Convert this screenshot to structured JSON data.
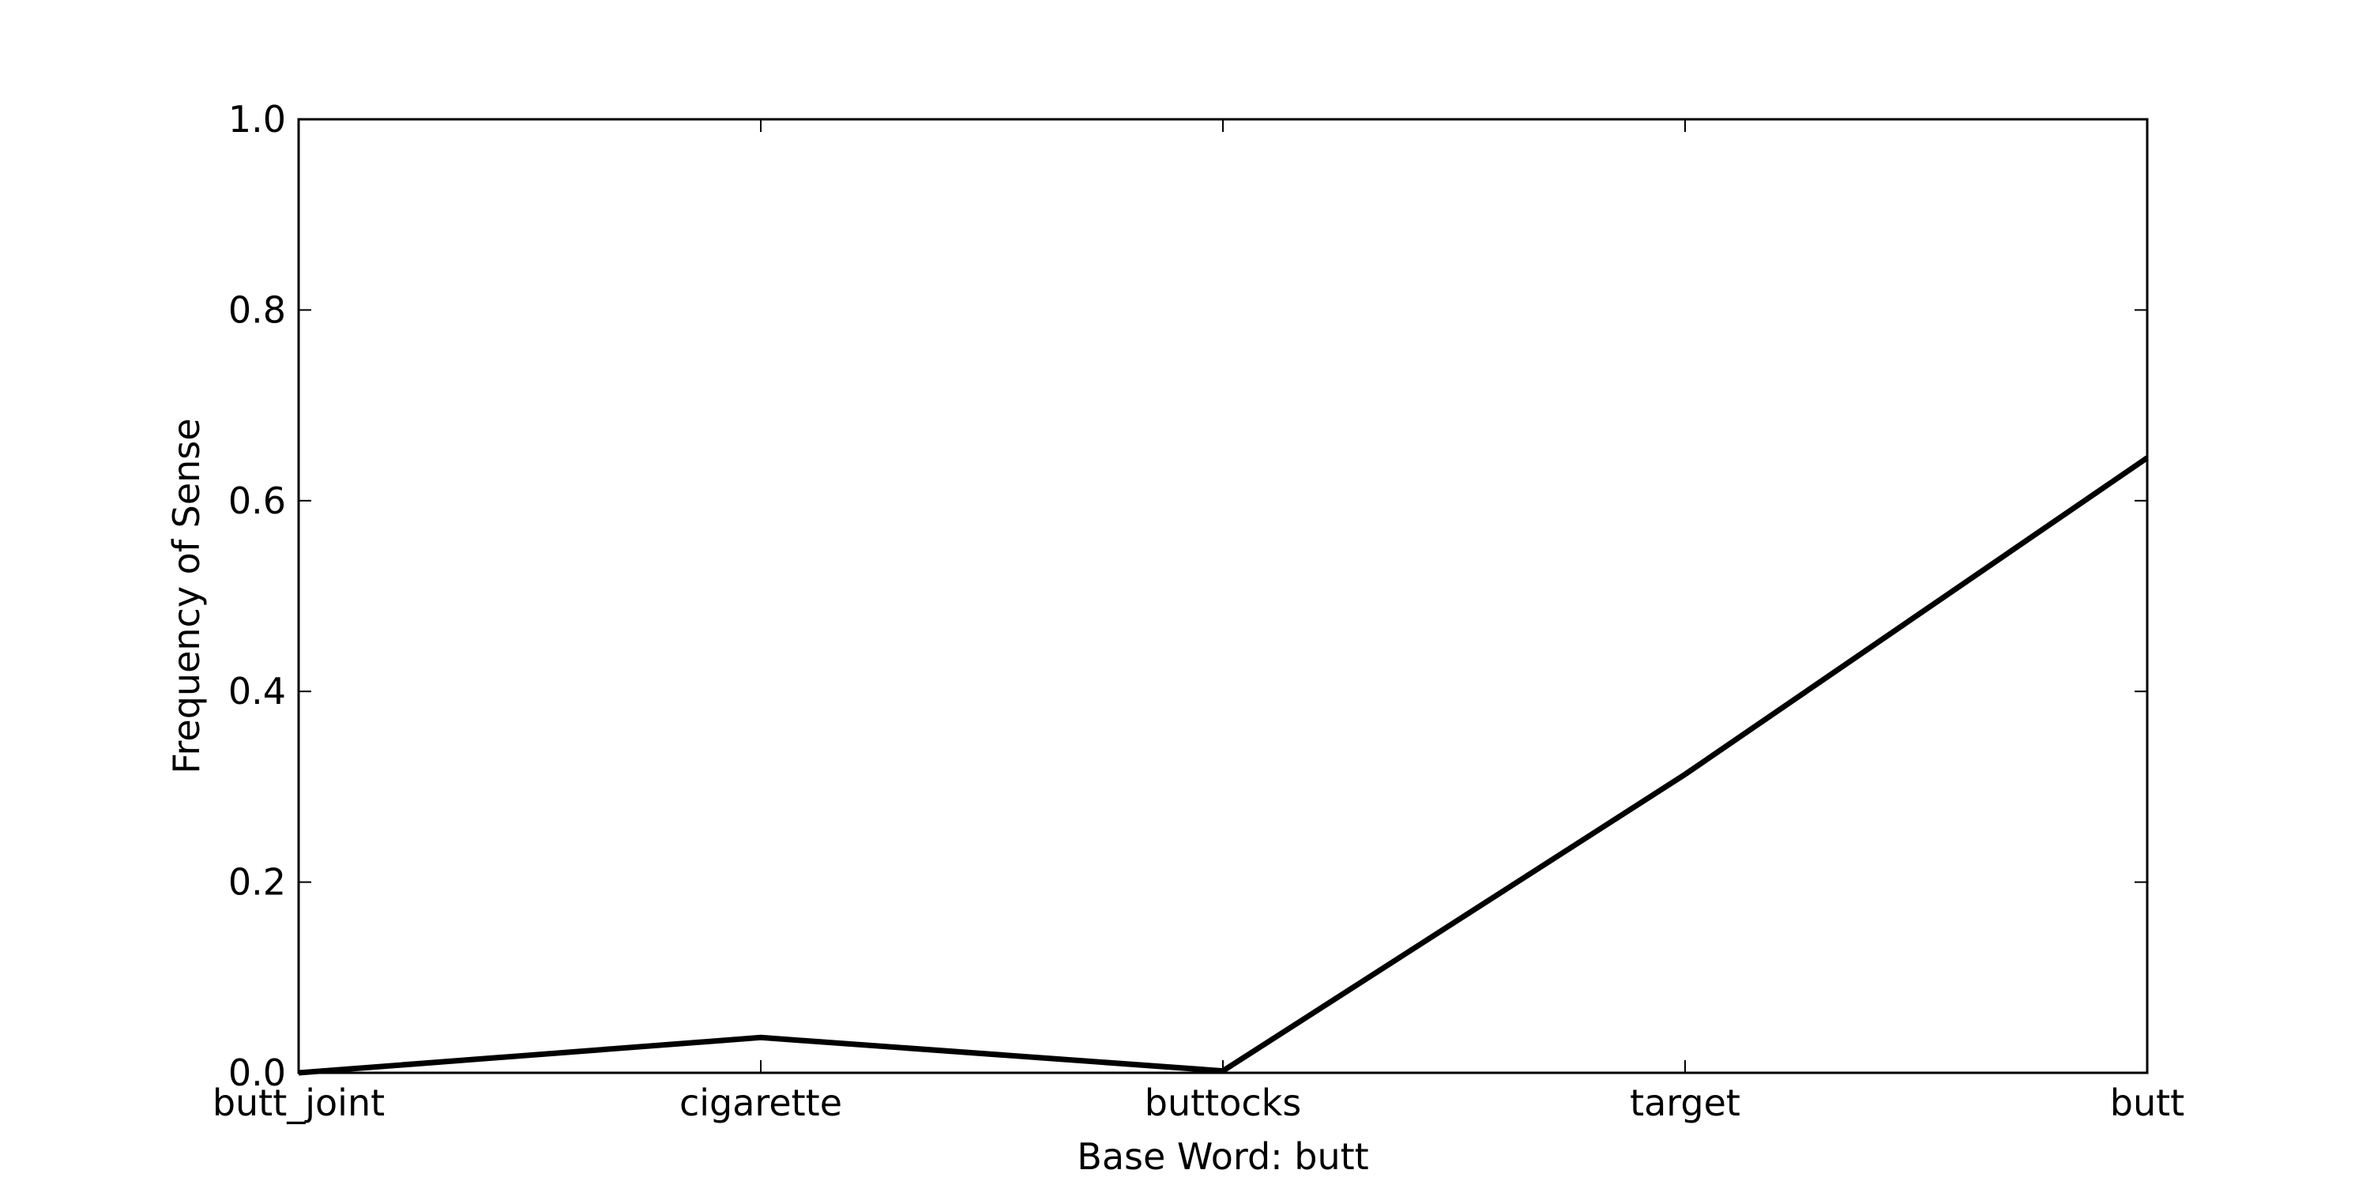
{
  "chart_data": {
    "type": "line",
    "categories": [
      "butt_joint",
      "cigarette",
      "buttocks",
      "target",
      "butt"
    ],
    "series": [
      {
        "values": [
          0.0,
          0.037,
          0.002,
          0.313,
          0.645
        ]
      }
    ],
    "xlabel": "Base Word: butt",
    "ylabel": "Frequency of Sense",
    "ylim": [
      0.0,
      1.0
    ],
    "yticks": [
      "0.0",
      "0.2",
      "0.4",
      "0.6",
      "0.8",
      "1.0"
    ],
    "grid": false,
    "legend": "none",
    "colors": {
      "line": "#000000",
      "axes": "#000000",
      "background": "#ffffff"
    }
  }
}
